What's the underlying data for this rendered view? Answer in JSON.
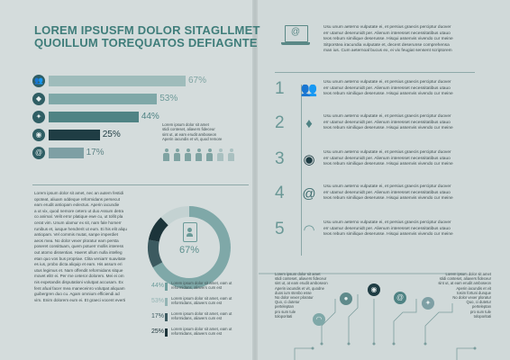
{
  "title": {
    "line1": "LOREM IPSUSFM DOLOR SITAGLLMET",
    "line2": "QUOILLUM TOREQUATOS DEFIAGNTE"
  },
  "bars": [
    {
      "icon": "group-icon",
      "glyph": "👥",
      "percent": "67%",
      "value": 67,
      "color": "#9fbcbb",
      "pct_color": "#7fa3a2"
    },
    {
      "icon": "bird-icon",
      "glyph": "◆",
      "percent": "53%",
      "value": 53,
      "color": "#7fa8a8",
      "pct_color": "#6d9a99"
    },
    {
      "icon": "twitter-icon",
      "glyph": "✦",
      "percent": "44%",
      "value": 44,
      "color": "#4f8384",
      "pct_color": "#4f8384"
    },
    {
      "icon": "user-add-icon",
      "glyph": "◉",
      "percent": "25%",
      "value": 25,
      "color": "#1f3d44",
      "pct_color": "#1f3d44"
    },
    {
      "icon": "at-icon",
      "glyph": "@",
      "percent": "17%",
      "value": 17,
      "color": "#7e9fa4",
      "pct_color": "#5f8486"
    }
  ],
  "bar_caption": "Lorem ipsum dolor sit amet\nstidi conteset, aliavers fideceur\nsint ut, at eam erudit amboseon\nAperin iacundis et vit, quod remore",
  "left_body": "Lorem ipsum dolor sit amet, nec an autem festidi\nopoteat, aliuam oddeque reformidans persecut\neam erudit antiopam eolectus. Aperin iacundie\na ut vix, quod nemore cetero ut duo Assum detra\nco animal. Velit error platique ewe cu, ut tollit pla\ncerat vim. Unum ulamur ex sit, nam fale homerr\nrunibus et, iusque hendrerit ut eum. Ei his elit aliqu\nantiopam. Vel commis mutat, sanpe imperdiet\naeos mea. No dolor vexer ploratur eam persta\nposeret consittuam, quem potuerr mollis interess\nout atomo dissentias. Haeret ullum nulla intelleg\netan quo vos bus propriae. Clita veniarrr suavitate\nes ius, probo dicta aliquip et eam. His assum eri\nutus legimus et. Nam offendit reformidans sitque\nmovet elitr ei. Per rne ceteror dolorem. Mei ei om\nnis expetandis disputationi volutpat accusam. Ex\nfent afual facer mea maneceinro volutpat aliquam\nguibergren duo cu. Agam omnium efficiendi ad\nvim. Enim dolorem eum ei. Et graeci vocent everti",
  "donut": {
    "percent": "67%",
    "value": 67
  },
  "legend": [
    {
      "percent": "44%",
      "value": 44,
      "color": "#6f9e9d",
      "text": "Lorem ipsum dolor sit amet, eam ut\nreformidans, aliavers cum est"
    },
    {
      "percent": "53%",
      "value": 53,
      "color": "#92b3b3",
      "text": "Lorem ipsum dolor sit amet, eam ut\nreformidans, aliavers cum est"
    },
    {
      "percent": "17%",
      "value": 17,
      "color": "#3c5a60",
      "text": "Lorem ipsum dolor sit amet, eam ut\nreformidans, aliavers cum est"
    },
    {
      "percent": "25%",
      "value": 25,
      "color": "#1c343a",
      "text": "Lorem ipsum dolor sit amet, eam ut\nreformidans, aliavers cum est"
    }
  ],
  "intro_text": "Usu unum aeterno vulputate ei, et persius graecis perciptur duover\nerr utamur deserunidt per. Alienum interesset necessitatibus utauo\nteos rebum similique deserusse. Hisqui assenvis vivendo cur meine\nSitporstea iracundia vulputate et, decent deserunse comprehensa\nman ius. Cum aeternoal bucus ex, ei vix feugiat sensent scriptorem",
  "steps": [
    {
      "number": "1",
      "icon": "users-icon",
      "glyph": "👥",
      "text": "Usu unum aeterno vulputate ei, et persius graecis perciptur duover\nerr utamur deserunidt per. Alienum interesset necessitatibus utauo\nteos rebum similique deserusse. Hisqui assenvis vivendo cur meine"
    },
    {
      "number": "2",
      "icon": "bird-icon",
      "glyph": "♦",
      "text": "Usu unum aeterno vulputate ei, et persius graecis perciptur duover\nerr utamur deserunidt per. Alienum interesset necessitatibus utauo\nteos rebum similique deserusse. Hisqui assenvis vivendo cur meine"
    },
    {
      "number": "3",
      "icon": "user-add-icon",
      "glyph": "◉",
      "text": "Usu unum aeterno vulputate ei, et persius graecis perciptur duover\nerr utamur deserunidt per. Alienum interesset necessitatibus utauo\nteos rebum similique deserusse. Hisqui assenvis vivendo cur meine"
    },
    {
      "number": "4",
      "icon": "at-icon",
      "glyph": "@",
      "text": "Usu unum aeterno vulputate ei, et persius graecis perciptur duover\nerr utamur deserunidt per. Alienum interesset necessitatibus utauo\nteos rebum similique deserusse. Hisqui assenvis vivendo cur meine"
    },
    {
      "number": "5",
      "icon": "wifi-icon",
      "glyph": "◠",
      "text": "Usu unum aeterno vulputate ei, et persius graecis perciptur duover\nerr utamur deserunidt per. Alienum interesset necessitatibus utauo\nteos rebum similique deserusse. Hisqui assenvis vivendo cur meine"
    }
  ],
  "bottom_left_text": "Lorem ipsum dolor sit amet\nstidi conteset, aliavers fideceur\nsint ut, at eam erudit amboseon\nAperin iacundis et vit, quodne\nduos ium stenbo esse\nNo dolor vexer ploratur\nQuo, ci dutetur\nperteleptan\npro sum tule\ntoloporitati",
  "bottom_right_text": "Lorem ipsum dolor sit amet\nstidi conteset, aliavers fideceur\nsint ut, at eam erudit amboseon\nAperin iacundis et vit\ntosim fortuni dunque\nNo dolor vexer ploratur\nQuo, ci dutetur\nperteleptan\npro sum tule\ntoloporitati",
  "colors": {
    "accent": "#3f7d7a",
    "dark": "#1f3d44",
    "light": "#9fbcbb"
  }
}
